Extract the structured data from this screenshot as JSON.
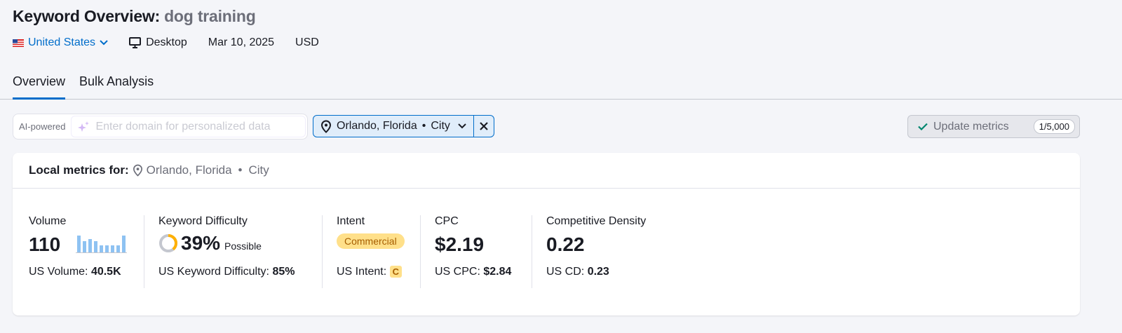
{
  "header": {
    "title": "Keyword Overview:",
    "keyword": "dog training"
  },
  "meta": {
    "country": "United States",
    "device": "Desktop",
    "date": "Mar 10, 2025",
    "currency": "USD"
  },
  "tabs": [
    {
      "label": "Overview",
      "active": true
    },
    {
      "label": "Bulk Analysis",
      "active": false
    }
  ],
  "ai": {
    "label": "AI-powered",
    "placeholder": "Enter domain for personalized data"
  },
  "location": {
    "name": "Orlando, Florida",
    "type": "City",
    "separator": "•"
  },
  "update": {
    "label": "Update metrics",
    "count": "1/5,000"
  },
  "card": {
    "heading": "Local metrics for:",
    "location": "Orlando, Florida",
    "type": "City",
    "separator": "•"
  },
  "metrics": {
    "volume": {
      "label": "Volume",
      "value": "110",
      "trend": [
        1,
        0.65,
        0.8,
        0.65,
        0.4,
        0.4,
        0.4,
        0.4,
        1
      ],
      "sub_label": "US Volume:",
      "sub_value": "40.5K"
    },
    "kd": {
      "label": "Keyword Difficulty",
      "value": "39%",
      "percent": 39,
      "level": "Possible",
      "sub_label": "US Keyword Difficulty:",
      "sub_value": "85%"
    },
    "intent": {
      "label": "Intent",
      "value": "Commercial",
      "sub_label": "US Intent:",
      "sub_value": "C"
    },
    "cpc": {
      "label": "CPC",
      "value": "$2.19",
      "sub_label": "US CPC:",
      "sub_value": "$2.84"
    },
    "cd": {
      "label": "Competitive Density",
      "value": "0.22",
      "sub_label": "US CD:",
      "sub_value": "0.23"
    }
  },
  "colors": {
    "accent": "#006dca",
    "kd_ring": "#ffb000",
    "intent_bg": "#ffe08a",
    "bars": "#8ec2f2"
  }
}
